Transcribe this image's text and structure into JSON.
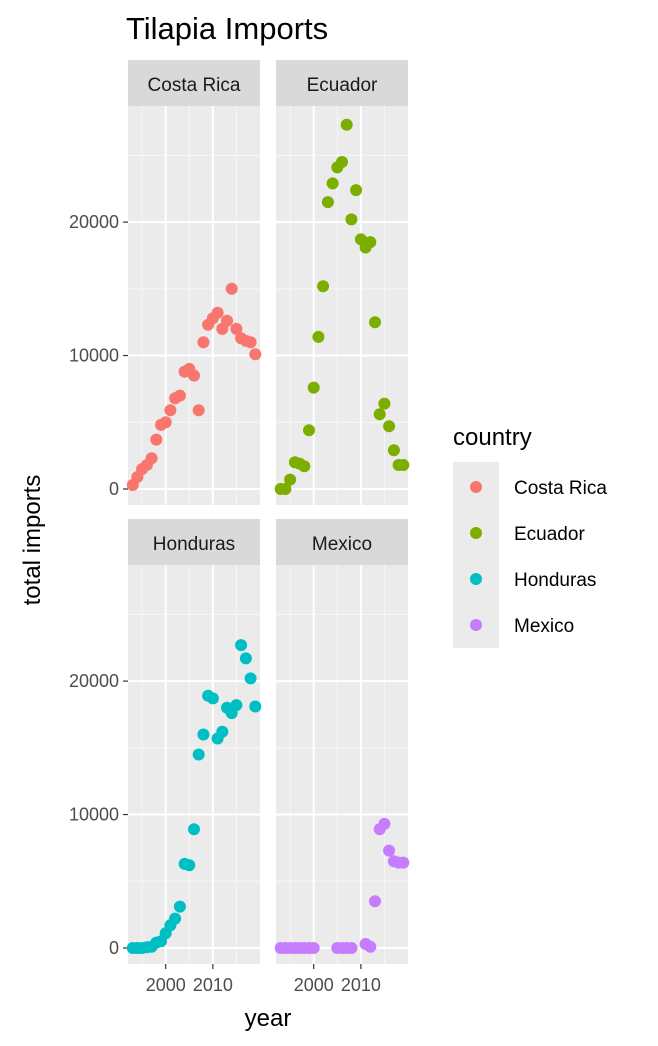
{
  "chart_data": {
    "type": "scatter",
    "title": "Tilapia Imports",
    "xlabel": "year",
    "ylabel": "total imports",
    "facets": [
      "Costa Rica",
      "Ecuador",
      "Honduras",
      "Mexico"
    ],
    "xlim": [
      1992,
      2020
    ],
    "ylim": [
      -1200,
      28700
    ],
    "x_ticks": [
      2000,
      2010
    ],
    "y_ticks": [
      0,
      10000,
      20000
    ],
    "grid": true,
    "legend": {
      "title": "country",
      "position": "right"
    },
    "series": [
      {
        "name": "Costa Rica",
        "color": "#F8766D",
        "x": [
          1993,
          1994,
          1995,
          1996,
          1997,
          1998,
          1999,
          2000,
          2001,
          2002,
          2003,
          2004,
          2005,
          2006,
          2007,
          2008,
          2009,
          2010,
          2011,
          2012,
          2013,
          2014,
          2015,
          2016,
          2017,
          2018,
          2019
        ],
        "y": [
          300,
          900,
          1500,
          1800,
          2300,
          3700,
          4800,
          5000,
          5900,
          6800,
          7000,
          8800,
          9000,
          8500,
          5900,
          11000,
          12300,
          12800,
          13200,
          12000,
          12600,
          15000,
          12000,
          11300,
          11100,
          11000,
          10100
        ]
      },
      {
        "name": "Ecuador",
        "color": "#7CAE00",
        "x": [
          1993,
          1994,
          1995,
          1996,
          1997,
          1998,
          1999,
          2000,
          2001,
          2002,
          2003,
          2004,
          2005,
          2006,
          2007,
          2008,
          2009,
          2010,
          2011,
          2012,
          2013,
          2014,
          2015,
          2016,
          2017,
          2018,
          2019
        ],
        "y": [
          0,
          0,
          700,
          2000,
          1900,
          1700,
          4400,
          7600,
          11400,
          15200,
          21500,
          22900,
          24100,
          24500,
          27300,
          20200,
          22400,
          18700,
          18100,
          18500,
          12500,
          5600,
          6400,
          4700,
          2900,
          1800,
          1800
        ]
      },
      {
        "name": "Honduras",
        "color": "#00BFC4",
        "x": [
          1993,
          1994,
          1995,
          1996,
          1997,
          1998,
          1999,
          2000,
          2001,
          2002,
          2003,
          2004,
          2005,
          2006,
          2007,
          2008,
          2009,
          2010,
          2011,
          2012,
          2013,
          2014,
          2015,
          2016,
          2017,
          2018,
          2019
        ],
        "y": [
          0,
          0,
          0,
          50,
          100,
          400,
          500,
          1100,
          1700,
          2200,
          3100,
          6300,
          6200,
          8900,
          14500,
          16000,
          18900,
          18700,
          15700,
          16200,
          18000,
          17600,
          18200,
          22700,
          21700,
          20200,
          18100
        ]
      },
      {
        "name": "Mexico",
        "color": "#C77CFF",
        "x": [
          1993,
          1994,
          1995,
          1996,
          1997,
          1998,
          1999,
          2000,
          2005,
          2006,
          2007,
          2008,
          2011,
          2012,
          2013,
          2014,
          2015,
          2016,
          2017,
          2018,
          2019
        ],
        "y": [
          0,
          0,
          0,
          0,
          0,
          0,
          0,
          0,
          0,
          0,
          0,
          0,
          300,
          100,
          3500,
          8900,
          9300,
          7300,
          6500,
          6400,
          6400
        ]
      }
    ]
  }
}
